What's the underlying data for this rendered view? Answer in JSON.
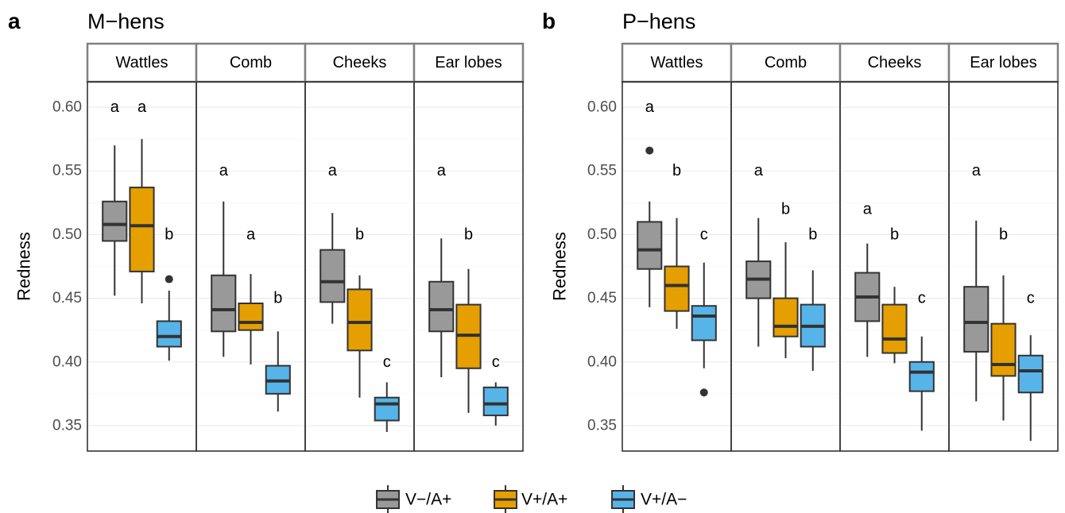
{
  "colors": {
    "V-/A+": "#999999",
    "V+/A+": "#E69F00",
    "V+/A-": "#56B4E9"
  },
  "legend": [
    {
      "label": "V−/A+",
      "color": "#999999"
    },
    {
      "label": "V+/A+",
      "color": "#E69F00"
    },
    {
      "label": "V+/A−",
      "color": "#56B4E9"
    }
  ],
  "chart_data": [
    {
      "type": "box",
      "panel_label": "a",
      "title": "M−hens",
      "ylabel": "Redness",
      "ylim": [
        0.33,
        0.62
      ],
      "yticks": [
        "0.35",
        "0.40",
        "0.45",
        "0.50",
        "0.55",
        "0.60"
      ],
      "facets": [
        {
          "name": "Wattles",
          "groups": [
            {
              "min": 0.452,
              "q1": 0.495,
              "median": 0.508,
              "q3": 0.526,
              "max": 0.57,
              "outliers": [],
              "letter": "a",
              "letter_y": 0.6
            },
            {
              "min": 0.446,
              "q1": 0.471,
              "median": 0.507,
              "q3": 0.537,
              "max": 0.575,
              "outliers": [],
              "letter": "a",
              "letter_y": 0.6
            },
            {
              "min": 0.401,
              "q1": 0.412,
              "median": 0.42,
              "q3": 0.432,
              "max": 0.456,
              "outliers": [
                0.465
              ],
              "letter": "b",
              "letter_y": 0.5
            }
          ]
        },
        {
          "name": "Comb",
          "groups": [
            {
              "min": 0.404,
              "q1": 0.424,
              "median": 0.441,
              "q3": 0.468,
              "max": 0.526,
              "outliers": [],
              "letter": "a",
              "letter_y": 0.55
            },
            {
              "min": 0.398,
              "q1": 0.425,
              "median": 0.431,
              "q3": 0.446,
              "max": 0.469,
              "outliers": [],
              "letter": "a",
              "letter_y": 0.5
            },
            {
              "min": 0.361,
              "q1": 0.375,
              "median": 0.385,
              "q3": 0.397,
              "max": 0.424,
              "outliers": [],
              "letter": "b",
              "letter_y": 0.45
            }
          ]
        },
        {
          "name": "Cheeks",
          "groups": [
            {
              "min": 0.43,
              "q1": 0.447,
              "median": 0.463,
              "q3": 0.488,
              "max": 0.517,
              "outliers": [],
              "letter": "a",
              "letter_y": 0.55
            },
            {
              "min": 0.372,
              "q1": 0.409,
              "median": 0.431,
              "q3": 0.457,
              "max": 0.468,
              "outliers": [],
              "letter": "b",
              "letter_y": 0.5
            },
            {
              "min": 0.345,
              "q1": 0.354,
              "median": 0.367,
              "q3": 0.372,
              "max": 0.384,
              "outliers": [],
              "letter": "c",
              "letter_y": 0.4
            }
          ]
        },
        {
          "name": "Ear lobes",
          "groups": [
            {
              "min": 0.388,
              "q1": 0.424,
              "median": 0.441,
              "q3": 0.463,
              "max": 0.497,
              "outliers": [],
              "letter": "a",
              "letter_y": 0.55
            },
            {
              "min": 0.36,
              "q1": 0.395,
              "median": 0.421,
              "q3": 0.445,
              "max": 0.473,
              "outliers": [],
              "letter": "b",
              "letter_y": 0.5
            },
            {
              "min": 0.35,
              "q1": 0.358,
              "median": 0.367,
              "q3": 0.38,
              "max": 0.384,
              "outliers": [],
              "letter": "c",
              "letter_y": 0.4
            }
          ]
        }
      ]
    },
    {
      "type": "box",
      "panel_label": "b",
      "title": "P−hens",
      "ylabel": "Redness",
      "ylim": [
        0.33,
        0.62
      ],
      "yticks": [
        "0.35",
        "0.40",
        "0.45",
        "0.50",
        "0.55",
        "0.60"
      ],
      "facets": [
        {
          "name": "Wattles",
          "groups": [
            {
              "min": 0.443,
              "q1": 0.473,
              "median": 0.488,
              "q3": 0.51,
              "max": 0.526,
              "outliers": [
                0.566
              ],
              "letter": "a",
              "letter_y": 0.6
            },
            {
              "min": 0.426,
              "q1": 0.44,
              "median": 0.46,
              "q3": 0.475,
              "max": 0.513,
              "outliers": [],
              "letter": "b",
              "letter_y": 0.55
            },
            {
              "min": 0.395,
              "q1": 0.417,
              "median": 0.436,
              "q3": 0.444,
              "max": 0.478,
              "outliers": [
                0.376
              ],
              "letter": "c",
              "letter_y": 0.5
            }
          ]
        },
        {
          "name": "Comb",
          "groups": [
            {
              "min": 0.412,
              "q1": 0.45,
              "median": 0.465,
              "q3": 0.479,
              "max": 0.513,
              "outliers": [],
              "letter": "a",
              "letter_y": 0.55
            },
            {
              "min": 0.403,
              "q1": 0.42,
              "median": 0.428,
              "q3": 0.45,
              "max": 0.494,
              "outliers": [],
              "letter": "b",
              "letter_y": 0.52
            },
            {
              "min": 0.393,
              "q1": 0.412,
              "median": 0.428,
              "q3": 0.445,
              "max": 0.472,
              "outliers": [],
              "letter": "b",
              "letter_y": 0.5
            }
          ]
        },
        {
          "name": "Cheeks",
          "groups": [
            {
              "min": 0.404,
              "q1": 0.432,
              "median": 0.451,
              "q3": 0.47,
              "max": 0.493,
              "outliers": [],
              "letter": "a",
              "letter_y": 0.52
            },
            {
              "min": 0.399,
              "q1": 0.407,
              "median": 0.418,
              "q3": 0.445,
              "max": 0.459,
              "outliers": [],
              "letter": "b",
              "letter_y": 0.5
            },
            {
              "min": 0.346,
              "q1": 0.377,
              "median": 0.392,
              "q3": 0.4,
              "max": 0.42,
              "outliers": [],
              "letter": "c",
              "letter_y": 0.45
            }
          ]
        },
        {
          "name": "Ear lobes",
          "groups": [
            {
              "min": 0.369,
              "q1": 0.408,
              "median": 0.431,
              "q3": 0.459,
              "max": 0.511,
              "outliers": [],
              "letter": "a",
              "letter_y": 0.55
            },
            {
              "min": 0.354,
              "q1": 0.389,
              "median": 0.398,
              "q3": 0.43,
              "max": 0.468,
              "outliers": [],
              "letter": "b",
              "letter_y": 0.5
            },
            {
              "min": 0.338,
              "q1": 0.376,
              "median": 0.393,
              "q3": 0.405,
              "max": 0.421,
              "outliers": [],
              "letter": "c",
              "letter_y": 0.45
            }
          ]
        }
      ]
    }
  ]
}
